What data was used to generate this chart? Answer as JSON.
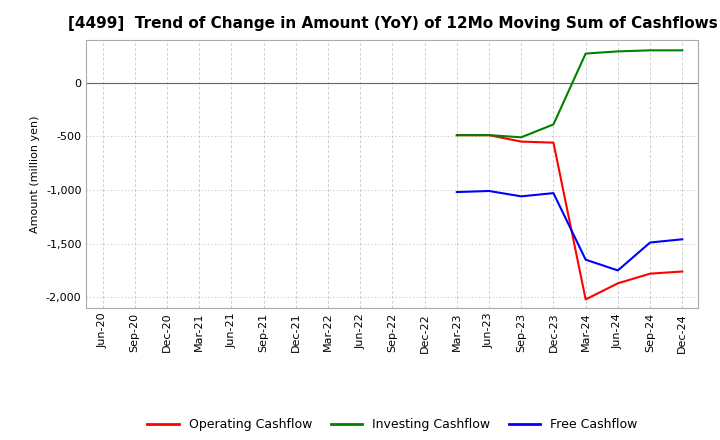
{
  "title": "[4499]  Trend of Change in Amount (YoY) of 12Mo Moving Sum of Cashflows",
  "ylabel": "Amount (million yen)",
  "background_color": "#ffffff",
  "grid_color": "#aaaaaa",
  "x_labels": [
    "Jun-20",
    "Sep-20",
    "Dec-20",
    "Mar-21",
    "Jun-21",
    "Sep-21",
    "Dec-21",
    "Mar-22",
    "Jun-22",
    "Sep-22",
    "Dec-22",
    "Mar-23",
    "Jun-23",
    "Sep-23",
    "Dec-23",
    "Mar-24",
    "Jun-24",
    "Sep-24",
    "Dec-24"
  ],
  "operating_cashflow": {
    "color": "#ff0000",
    "data": {
      "Mar-23": -490,
      "Jun-23": -490,
      "Sep-23": -550,
      "Dec-23": -560,
      "Mar-24": -2020,
      "Jun-24": -1870,
      "Sep-24": -1780,
      "Dec-24": -1760
    }
  },
  "investing_cashflow": {
    "color": "#008000",
    "data": {
      "Mar-23": -490,
      "Jun-23": -490,
      "Sep-23": -510,
      "Dec-23": -390,
      "Mar-24": 270,
      "Jun-24": 290,
      "Sep-24": 300,
      "Dec-24": 300
    }
  },
  "free_cashflow": {
    "color": "#0000ff",
    "data": {
      "Mar-23": -1020,
      "Jun-23": -1010,
      "Sep-23": -1060,
      "Dec-23": -1030,
      "Mar-24": -1650,
      "Jun-24": -1750,
      "Sep-24": -1490,
      "Dec-24": -1460
    }
  },
  "ylim": [
    -2100,
    400
  ],
  "yticks": [
    0,
    -500,
    -1000,
    -1500,
    -2000
  ],
  "title_fontsize": 11,
  "axis_fontsize": 8,
  "legend_fontsize": 9
}
